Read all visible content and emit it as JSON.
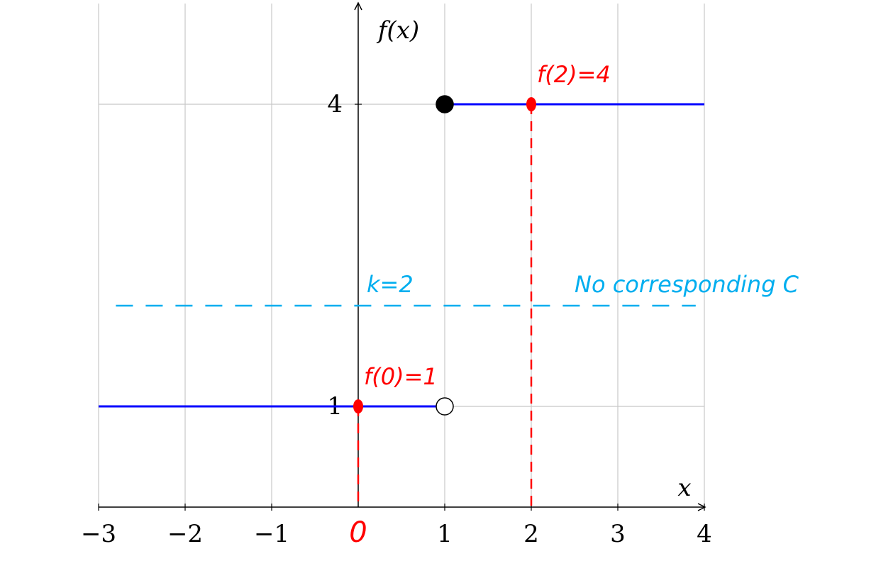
{
  "chart_data": {
    "type": "line",
    "ylabel": "f(x)",
    "xlabel": "x",
    "xlim": [
      -3,
      4
    ],
    "ylim": [
      0,
      5
    ],
    "xticks": [
      {
        "value": -3,
        "label": "−3"
      },
      {
        "value": -2,
        "label": "−2"
      },
      {
        "value": -1,
        "label": "−1"
      },
      1,
      2,
      3,
      4
    ],
    "yticks": [
      1,
      4
    ],
    "grid": true,
    "series": [
      {
        "color": "#0000ff",
        "x": [
          -3,
          1
        ],
        "values": [
          1,
          1
        ]
      },
      {
        "color": "#0000ff",
        "x": [
          1,
          4
        ],
        "values": [
          4,
          4
        ]
      }
    ],
    "endpoints": [
      {
        "x": 1,
        "y": 4,
        "filled": true
      },
      {
        "x": 1,
        "y": 1,
        "filled": false
      }
    ],
    "annotations": {
      "color": "#ff0000",
      "points": [
        {
          "x": 0,
          "y": 1,
          "label": "f(0)=1"
        },
        {
          "x": 2,
          "y": 4,
          "label": "f(2)=4"
        }
      ],
      "origin": {
        "value": 0,
        "label": "0"
      },
      "level": {
        "y": 2,
        "x": [
          -2.8,
          3.9
        ],
        "label": "k=2",
        "note": "No corresponding C",
        "color": "#00aeef"
      }
    }
  }
}
